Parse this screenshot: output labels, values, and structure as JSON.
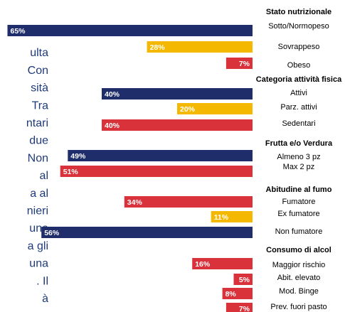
{
  "side_text": [
    "ulta",
    "Con",
    "sità",
    "Tra",
    "ntari",
    "due",
    "Non",
    "al",
    "a al",
    "nieri",
    "una",
    "a gli",
    "una",
    ". Il",
    "à"
  ],
  "chart_data": {
    "type": "bar",
    "orientation": "horizontal",
    "colors": {
      "navy": "#1f2d6b",
      "yellow": "#f5b800",
      "red": "#d9323a"
    },
    "groups": [
      {
        "title": "Stato nutrizionale",
        "categories": [
          "Sotto/Normopeso",
          "Sovrappeso",
          "Obeso"
        ],
        "values": [
          65,
          28,
          7
        ],
        "value_labels": [
          "65%",
          "28%",
          "7%"
        ],
        "bar_colors": [
          "navy",
          "yellow",
          "red"
        ]
      },
      {
        "title": "Categoria attività fisica",
        "categories": [
          "Attivi",
          "Parz. attivi",
          "Sedentari"
        ],
        "values": [
          40,
          20,
          40
        ],
        "value_labels": [
          "40%",
          "20%",
          "40%"
        ],
        "bar_colors": [
          "navy",
          "yellow",
          "red"
        ]
      },
      {
        "title": "Frutta e/o Verdura",
        "categories": [
          "Almeno 3 pz",
          "Max 2 pz"
        ],
        "values": [
          49,
          51
        ],
        "value_labels": [
          "49%",
          "51%"
        ],
        "bar_colors": [
          "navy",
          "red"
        ]
      },
      {
        "title": "Abitudine al fumo",
        "categories": [
          "Fumatore",
          "Ex fumatore",
          "Non fumatore"
        ],
        "values": [
          34,
          11,
          56
        ],
        "value_labels": [
          "34%",
          "11%",
          "56%"
        ],
        "bar_colors": [
          "red",
          "yellow",
          "navy"
        ]
      },
      {
        "title": "Consumo di alcol",
        "categories": [
          "Maggior rischio",
          "Abit. elevato",
          "Mod. Binge",
          "Prev. fuori pasto"
        ],
        "values": [
          16,
          5,
          8,
          7
        ],
        "value_labels": [
          "16%",
          "5%",
          "8%",
          "7%"
        ],
        "bar_colors": [
          "red",
          "red",
          "red",
          "red"
        ]
      }
    ]
  }
}
